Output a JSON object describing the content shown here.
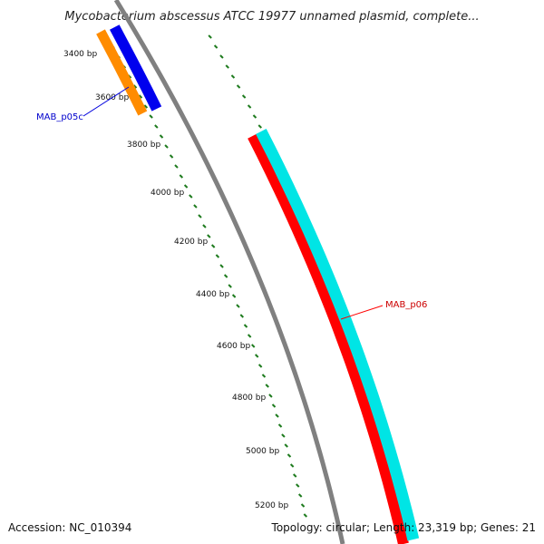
{
  "title": "Mycobacterium abscessus ATCC 19977 unnamed plasmid, complete...",
  "footer": {
    "accession": "Accession: NC_010394",
    "summary": "Topology: circular; Length: 23,319 bp; Genes: 21"
  },
  "map": {
    "backbone_color": "#808080",
    "tick_color": "#1e7b1e",
    "tick_labels": [
      "3400 bp",
      "3600 bp",
      "3800 bp",
      "4000 bp",
      "4200 bp",
      "4400 bp",
      "4600 bp",
      "4800 bp",
      "5000 bp",
      "5200 bp"
    ]
  },
  "features": [
    {
      "name": "MAB_p05c",
      "label": "MAB_p05c",
      "color": "#0000dd",
      "label_color": "#0000cc"
    },
    {
      "name": "MAB_p06",
      "label": "MAB_p06",
      "color": "#ff0000",
      "label_color": "#cc0000"
    }
  ],
  "feature_tracks": {
    "orange": "#ff8c00",
    "blue": "#0000ee",
    "red": "#ff0000",
    "cyan": "#00e5e5"
  }
}
